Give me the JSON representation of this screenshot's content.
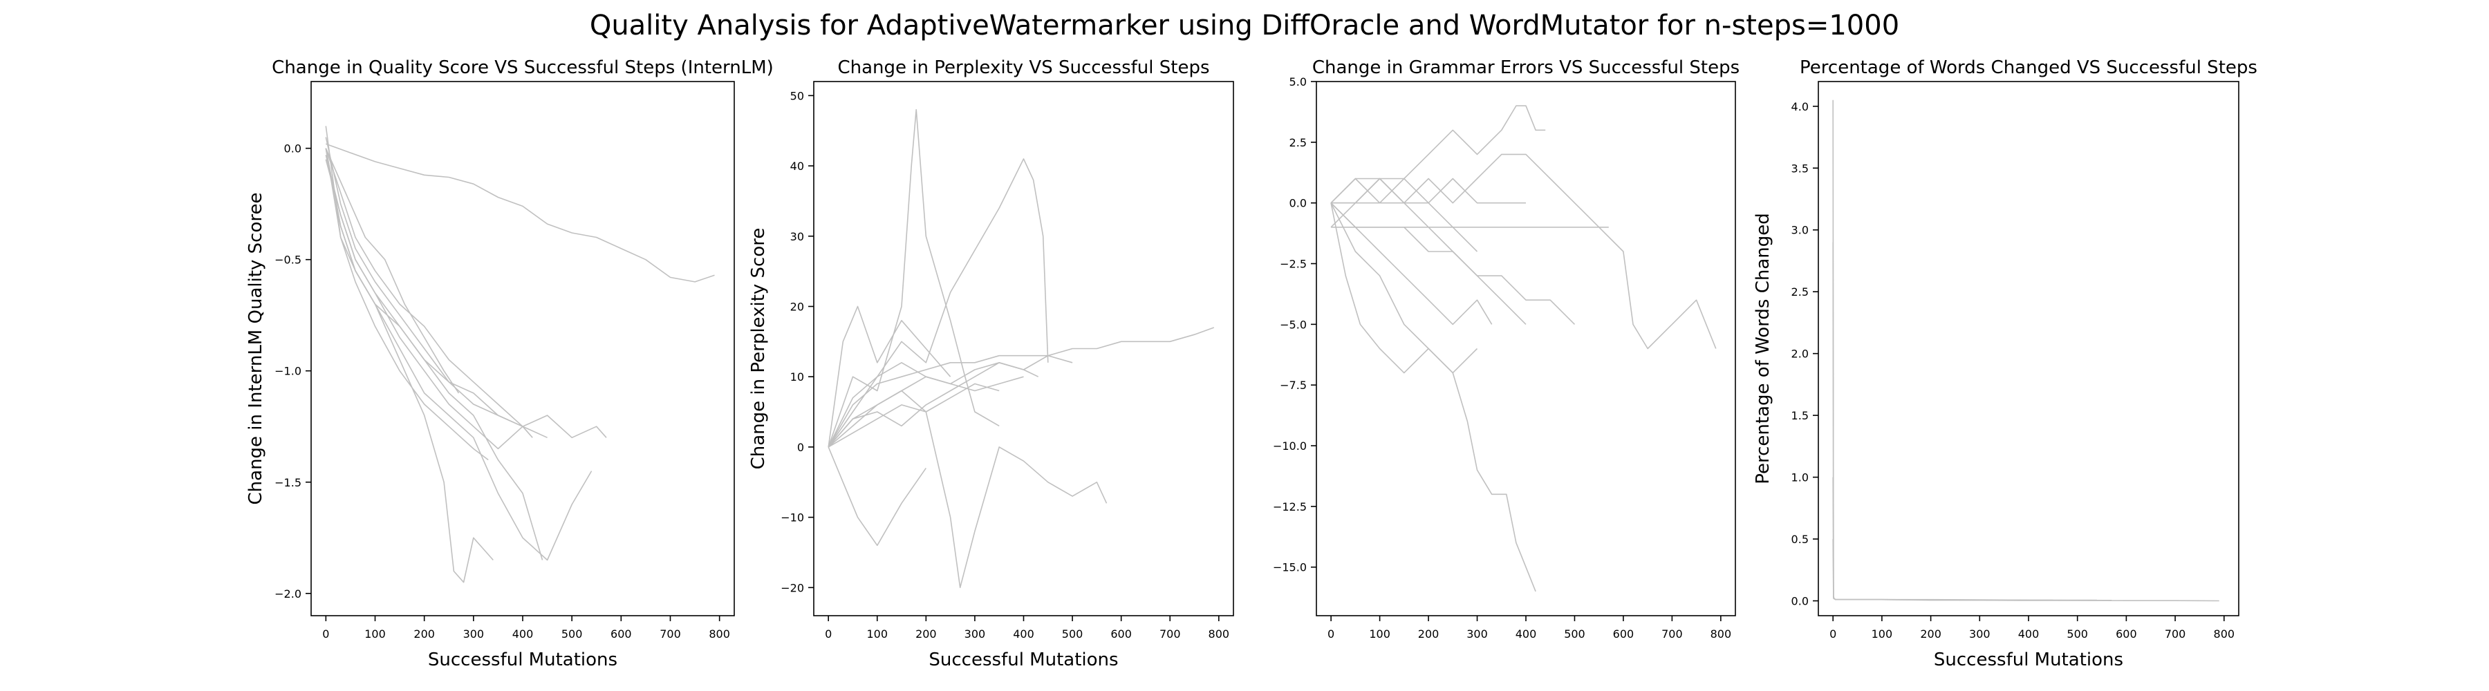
{
  "figure": {
    "title": "Quality Analysis for AdaptiveWatermarker using DiffOracle and WordMutator for n-steps=1000"
  },
  "colors": {
    "line": "#c0c0c0",
    "axes": "#000000",
    "background": "#ffffff"
  },
  "chart_data": [
    {
      "type": "line",
      "title": "Change in Quality Score VS Successful Steps (InternLM)",
      "xlabel": "Successful Mutations",
      "ylabel": "Change in InternLM Quality Scoree",
      "xlim": [
        -30,
        830
      ],
      "ylim": [
        -2.1,
        0.3
      ],
      "xticks": [
        0,
        100,
        200,
        300,
        400,
        500,
        600,
        700,
        800
      ],
      "yticks": [
        -2.0,
        -1.5,
        -1.0,
        -0.5,
        0.0
      ],
      "ytick_labels": [
        "−2.0",
        "−1.5",
        "−1.0",
        "−0.5",
        "0.0"
      ],
      "grid": false,
      "series": [
        {
          "x": [
            0,
            50,
            100,
            150,
            200,
            250,
            300,
            350,
            400,
            450,
            500,
            550,
            600,
            650,
            700,
            750,
            790
          ],
          "y": [
            0.02,
            -0.02,
            -0.06,
            -0.09,
            -0.12,
            -0.13,
            -0.16,
            -0.22,
            -0.26,
            -0.34,
            -0.38,
            -0.4,
            -0.45,
            -0.5,
            -0.58,
            -0.6,
            -0.57
          ]
        },
        {
          "x": [
            0,
            30,
            60,
            100,
            150,
            200,
            250,
            300,
            350,
            400,
            450,
            500,
            550,
            570
          ],
          "y": [
            0.05,
            -0.25,
            -0.45,
            -0.6,
            -0.75,
            -0.9,
            -1.05,
            -1.1,
            -1.2,
            -1.25,
            -1.2,
            -1.3,
            -1.25,
            -1.3
          ]
        },
        {
          "x": [
            0,
            30,
            60,
            100,
            150,
            200,
            250,
            300,
            350,
            400,
            450,
            500,
            540
          ],
          "y": [
            0.0,
            -0.35,
            -0.55,
            -0.7,
            -0.9,
            -1.1,
            -1.2,
            -1.3,
            -1.55,
            -1.75,
            -1.85,
            -1.6,
            -1.45
          ]
        },
        {
          "x": [
            0,
            30,
            60,
            100,
            150,
            200,
            240,
            260,
            280,
            300,
            320,
            340
          ],
          "y": [
            0.0,
            -0.4,
            -0.55,
            -0.7,
            -0.95,
            -1.2,
            -1.5,
            -1.9,
            -1.95,
            -1.75,
            -1.8,
            -1.85
          ]
        },
        {
          "x": [
            0,
            30,
            60,
            100,
            150,
            200,
            250,
            300,
            350,
            400,
            440
          ],
          "y": [
            -0.05,
            -0.3,
            -0.5,
            -0.65,
            -0.8,
            -0.95,
            -1.1,
            -1.2,
            -1.4,
            -1.55,
            -1.85
          ]
        },
        {
          "x": [
            0,
            30,
            60,
            100,
            150,
            200,
            250,
            300,
            350,
            400,
            450
          ],
          "y": [
            0.0,
            -0.2,
            -0.4,
            -0.55,
            -0.7,
            -0.8,
            -0.95,
            -1.05,
            -1.15,
            -1.25,
            -1.3
          ]
        },
        {
          "x": [
            0,
            30,
            60,
            100,
            150,
            200,
            250,
            300,
            350,
            400,
            420
          ],
          "y": [
            -0.03,
            -0.3,
            -0.5,
            -0.65,
            -0.85,
            -1.0,
            -1.15,
            -1.25,
            -1.35,
            -1.25,
            -1.3
          ]
        },
        {
          "x": [
            0,
            30,
            60,
            100,
            150,
            200,
            250,
            300,
            350,
            400
          ],
          "y": [
            0.0,
            -0.35,
            -0.55,
            -0.7,
            -0.8,
            -0.95,
            -1.05,
            -1.15,
            -1.2,
            -1.25
          ]
        },
        {
          "x": [
            0,
            30,
            60,
            100,
            150,
            200,
            250,
            300,
            330
          ],
          "y": [
            0.1,
            -0.4,
            -0.6,
            -0.8,
            -1.0,
            -1.15,
            -1.25,
            -1.35,
            -1.4
          ]
        },
        {
          "x": [
            0,
            40,
            80,
            120,
            160,
            200,
            240,
            270
          ],
          "y": [
            0.0,
            -0.2,
            -0.4,
            -0.5,
            -0.7,
            -0.85,
            -1.0,
            -1.1
          ]
        }
      ]
    },
    {
      "type": "line",
      "title": "Change in Perplexity VS Successful Steps",
      "xlabel": "Successful Mutations",
      "ylabel": "Change in Perplexity Score",
      "xlim": [
        -30,
        830
      ],
      "ylim": [
        -24,
        52
      ],
      "xticks": [
        0,
        100,
        200,
        300,
        400,
        500,
        600,
        700,
        800
      ],
      "yticks": [
        -20,
        -10,
        0,
        10,
        20,
        30,
        40,
        50
      ],
      "ytick_labels": [
        "−20",
        "−10",
        "0",
        "10",
        "20",
        "30",
        "40",
        "50"
      ],
      "grid": false,
      "series": [
        {
          "x": [
            0,
            50,
            100,
            150,
            200,
            250,
            300,
            350,
            400,
            450,
            500,
            550,
            600,
            650,
            700,
            750,
            790
          ],
          "y": [
            0,
            6,
            9,
            10,
            11,
            12,
            12,
            13,
            13,
            13,
            14,
            14,
            15,
            15,
            15,
            16,
            17
          ]
        },
        {
          "x": [
            0,
            50,
            100,
            150,
            170,
            180,
            200,
            250,
            280,
            300,
            350
          ],
          "y": [
            0,
            10,
            8,
            20,
            40,
            48,
            30,
            18,
            10,
            5,
            3
          ]
        },
        {
          "x": [
            0,
            50,
            100,
            150,
            200,
            250,
            300,
            350,
            400,
            420,
            440,
            450
          ],
          "y": [
            0,
            5,
            10,
            15,
            12,
            22,
            28,
            34,
            41,
            38,
            30,
            12
          ]
        },
        {
          "x": [
            0,
            50,
            100,
            150,
            200,
            250,
            270,
            300,
            350,
            400,
            450,
            500,
            550,
            570
          ],
          "y": [
            0,
            4,
            6,
            8,
            5,
            -10,
            -20,
            -12,
            0,
            -2,
            -5,
            -7,
            -5,
            -8
          ]
        },
        {
          "x": [
            0,
            30,
            60,
            100,
            150,
            200
          ],
          "y": [
            0,
            -5,
            -10,
            -14,
            -8,
            -3
          ]
        },
        {
          "x": [
            0,
            50,
            100,
            150,
            200,
            250,
            300,
            350,
            400,
            430
          ],
          "y": [
            0,
            7,
            10,
            12,
            10,
            9,
            11,
            12,
            11,
            10
          ]
        },
        {
          "x": [
            0,
            50,
            100,
            150,
            200,
            250,
            300,
            350,
            400
          ],
          "y": [
            0,
            3,
            6,
            8,
            10,
            9,
            8,
            9,
            10
          ]
        },
        {
          "x": [
            0,
            30,
            60,
            100,
            150,
            200,
            250
          ],
          "y": [
            0,
            15,
            20,
            12,
            18,
            14,
            10
          ]
        },
        {
          "x": [
            0,
            50,
            100,
            150,
            200,
            250,
            300,
            350
          ],
          "y": [
            0,
            2,
            4,
            6,
            5,
            7,
            9,
            8
          ]
        },
        {
          "x": [
            0,
            50,
            100,
            150,
            200,
            250,
            300,
            350,
            400,
            450,
            500
          ],
          "y": [
            0,
            4,
            5,
            3,
            6,
            8,
            10,
            12,
            11,
            13,
            12
          ]
        }
      ]
    },
    {
      "type": "line",
      "title": "Change in Grammar Errors VS Successful Steps",
      "xlabel": "",
      "ylabel": "",
      "xlim": [
        -30,
        830
      ],
      "ylim": [
        -17,
        5
      ],
      "xticks": [
        0,
        100,
        200,
        300,
        400,
        500,
        600,
        700,
        800
      ],
      "yticks": [
        -15.0,
        -12.5,
        -10.0,
        -7.5,
        -5.0,
        -2.5,
        0.0,
        2.5,
        5.0
      ],
      "ytick_labels": [
        "−15.0",
        "−12.5",
        "−10.0",
        "−7.5",
        "−5.0",
        "−2.5",
        "0.0",
        "2.5",
        "5.0"
      ],
      "grid": false,
      "series": [
        {
          "x": [
            0,
            50,
            100,
            150,
            200,
            250,
            300,
            350,
            400,
            450,
            500,
            550,
            600,
            620,
            650,
            700,
            750,
            790
          ],
          "y": [
            0,
            1,
            1,
            0,
            1,
            0,
            1,
            2,
            2,
            1,
            0,
            -1,
            -2,
            -5,
            -6,
            -5,
            -4,
            -6
          ]
        },
        {
          "x": [
            0,
            50,
            100,
            150,
            200,
            250,
            280,
            300,
            330,
            360,
            380,
            400,
            420
          ],
          "y": [
            0,
            -2,
            -3,
            -5,
            -6,
            -7,
            -9,
            -11,
            -12,
            -12,
            -14,
            -15,
            -16
          ]
        },
        {
          "x": [
            0,
            50,
            100,
            150,
            200,
            250,
            300,
            350,
            380,
            400,
            420,
            440
          ],
          "y": [
            0,
            0,
            1,
            1,
            2,
            3,
            2,
            3,
            4,
            4,
            3,
            3
          ]
        },
        {
          "x": [
            0,
            30,
            60,
            100,
            150,
            200,
            250,
            300
          ],
          "y": [
            0,
            -3,
            -5,
            -6,
            -7,
            -6,
            -7,
            -6
          ]
        },
        {
          "x": [
            0,
            50,
            100,
            150,
            200,
            250,
            300,
            350,
            400,
            450,
            500
          ],
          "y": [
            0,
            -1,
            -1,
            -1,
            -2,
            -2,
            -3,
            -3,
            -4,
            -4,
            -5
          ]
        },
        {
          "x": [
            0,
            50,
            100,
            150,
            200,
            250,
            300,
            350,
            400,
            450,
            500,
            550,
            570
          ],
          "y": [
            -1,
            -1,
            -1,
            -1,
            -1,
            -1,
            -1,
            -1,
            -1,
            -1,
            -1,
            -1,
            -1
          ]
        },
        {
          "x": [
            0,
            50,
            100,
            150,
            200,
            250,
            300,
            350,
            400
          ],
          "y": [
            0,
            0,
            0,
            0,
            -1,
            -2,
            -3,
            -4,
            -5
          ]
        },
        {
          "x": [
            0,
            50,
            100,
            150,
            200,
            250,
            300
          ],
          "y": [
            0,
            1,
            0,
            1,
            0,
            -1,
            -2
          ]
        },
        {
          "x": [
            0,
            50,
            100,
            150,
            200,
            250,
            300,
            350,
            400
          ],
          "y": [
            -1,
            0,
            1,
            0,
            0,
            1,
            0,
            0,
            0
          ]
        },
        {
          "x": [
            0,
            50,
            100,
            150,
            200,
            250,
            300,
            330
          ],
          "y": [
            0,
            -1,
            -2,
            -3,
            -4,
            -5,
            -4,
            -5
          ]
        }
      ]
    },
    {
      "type": "line",
      "title": "Percentage of Words Changed VS Successful Steps",
      "xlabel": "Successful Mutations",
      "ylabel": "Percentage of Words Changed",
      "xlim": [
        -30,
        830
      ],
      "ylim": [
        -0.12,
        4.2
      ],
      "xticks": [
        0,
        100,
        200,
        300,
        400,
        500,
        600,
        700,
        800
      ],
      "yticks": [
        0.0,
        0.5,
        1.0,
        1.5,
        2.0,
        2.5,
        3.0,
        3.5,
        4.0
      ],
      "ytick_labels": [
        "0.0",
        "0.5",
        "1.0",
        "1.5",
        "2.0",
        "2.5",
        "3.0",
        "3.5",
        "4.0"
      ],
      "grid": false,
      "series": [
        {
          "x": [
            0,
            1,
            2,
            5,
            100,
            200,
            300,
            400,
            500,
            600,
            700,
            790
          ],
          "y": [
            4.05,
            0.03,
            0.02,
            0.01,
            0.01,
            0.005,
            0.005,
            0.003,
            0.003,
            0.002,
            0.002,
            0.0
          ]
        },
        {
          "x": [
            0,
            1,
            2,
            5,
            100,
            200,
            300,
            400,
            500,
            570
          ],
          "y": [
            2.9,
            0.04,
            0.02,
            0.01,
            0.01,
            0.008,
            0.006,
            0.005,
            0.004,
            0.004
          ]
        },
        {
          "x": [
            0,
            1,
            2,
            5,
            100,
            200,
            300,
            400,
            450
          ],
          "y": [
            1.0,
            0.03,
            0.02,
            0.01,
            0.01,
            0.008,
            0.007,
            0.006,
            0.005
          ]
        },
        {
          "x": [
            0,
            1,
            5,
            100,
            200,
            300,
            400,
            540
          ],
          "y": [
            0.5,
            0.02,
            0.01,
            0.01,
            0.01,
            0.008,
            0.006,
            0.005
          ]
        }
      ]
    }
  ]
}
